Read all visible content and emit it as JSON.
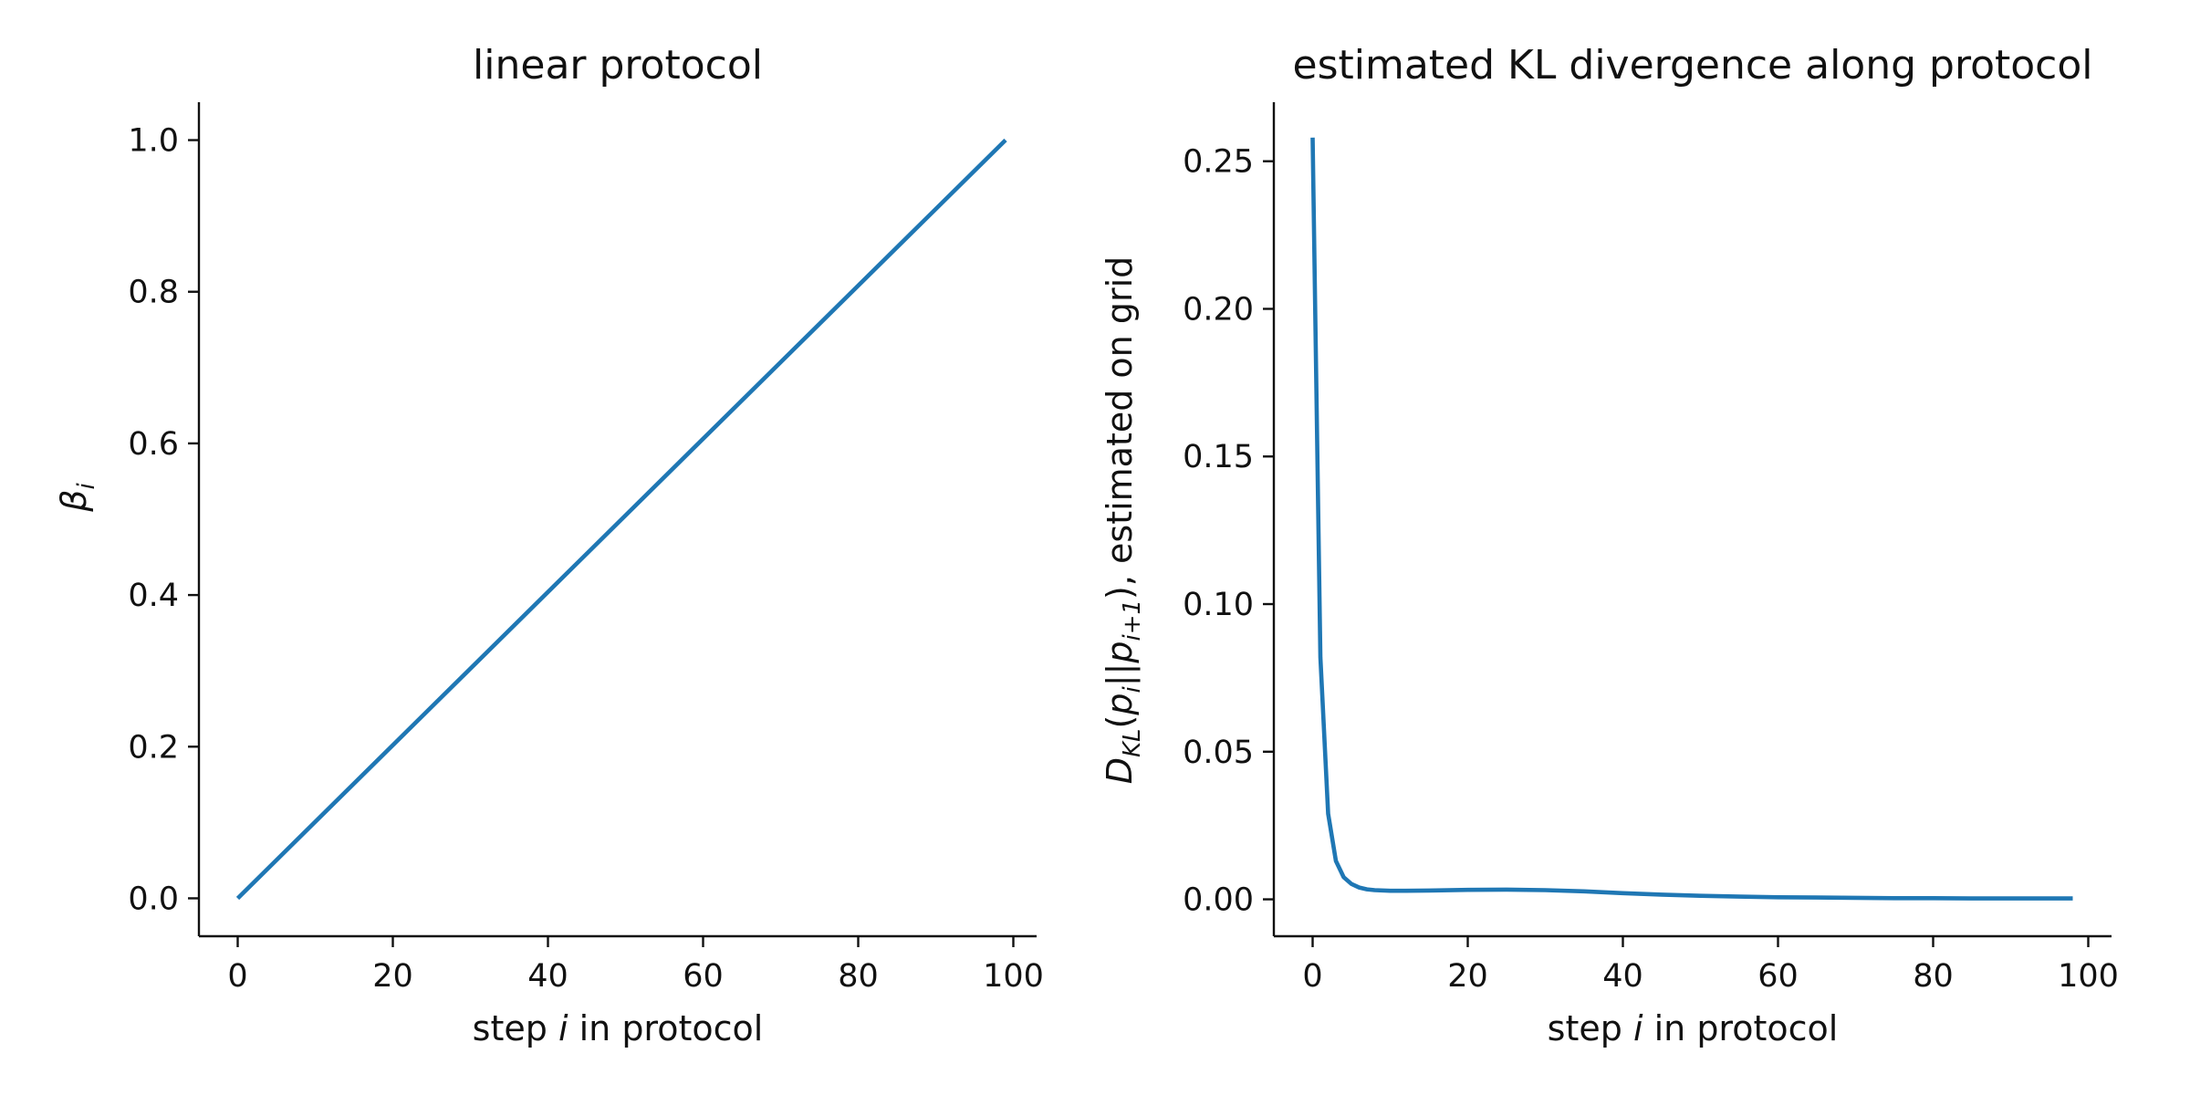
{
  "chart_data": [
    {
      "type": "line",
      "title": "linear protocol",
      "xlabel": {
        "pre": "step ",
        "var": "i",
        "post": " in protocol"
      },
      "ylabel": {
        "base": "β",
        "sub": "i"
      },
      "xlim": [
        -5,
        103
      ],
      "ylim": [
        -0.05,
        1.05
      ],
      "xticks": [
        0,
        20,
        40,
        60,
        80,
        100
      ],
      "xtick_labels": [
        "0",
        "20",
        "40",
        "60",
        "80",
        "100"
      ],
      "yticks": [
        0,
        0.2,
        0.4,
        0.6,
        0.8,
        1.0
      ],
      "ytick_labels": [
        "0.0",
        "0.2",
        "0.4",
        "0.6",
        "0.8",
        "1.0"
      ],
      "grid": false,
      "color": "#1f77b4",
      "series": [
        {
          "x": [
            0,
            99
          ],
          "y": [
            0.0,
            1.0
          ]
        }
      ]
    },
    {
      "type": "line",
      "title": "estimated KL divergence along protocol",
      "xlabel": {
        "pre": "step ",
        "var": "i",
        "post": " in protocol"
      },
      "ylabel": {
        "parts": [
          {
            "t": "D",
            "s": "i"
          },
          {
            "t": "KL",
            "s": "sub"
          },
          {
            "t": "(",
            "s": "n"
          },
          {
            "t": "p",
            "s": "i"
          },
          {
            "t": "i",
            "s": "sub"
          },
          {
            "t": "||",
            "s": "n"
          },
          {
            "t": "p",
            "s": "i"
          },
          {
            "t": "i+1",
            "s": "sub"
          },
          {
            "t": "), estimated on grid",
            "s": "n"
          }
        ]
      },
      "xlim": [
        -5,
        103
      ],
      "ylim": [
        -0.0125,
        0.27
      ],
      "xticks": [
        0,
        20,
        40,
        60,
        80,
        100
      ],
      "xtick_labels": [
        "0",
        "20",
        "40",
        "60",
        "80",
        "100"
      ],
      "yticks": [
        0,
        0.05,
        0.1,
        0.15,
        0.2,
        0.25
      ],
      "ytick_labels": [
        "0.00",
        "0.05",
        "0.10",
        "0.15",
        "0.20",
        "0.25"
      ],
      "grid": false,
      "color": "#1f77b4",
      "series": [
        {
          "x": [
            0,
            1,
            2,
            3,
            4,
            5,
            6,
            7,
            8,
            10,
            12,
            15,
            20,
            25,
            30,
            35,
            40,
            45,
            50,
            55,
            60,
            65,
            70,
            75,
            80,
            85,
            90,
            95,
            98
          ],
          "y": [
            0.258,
            0.082,
            0.029,
            0.013,
            0.0075,
            0.0052,
            0.004,
            0.0034,
            0.0031,
            0.0029,
            0.0029,
            0.003,
            0.0032,
            0.0033,
            0.0031,
            0.0027,
            0.0021,
            0.0016,
            0.0012,
            0.0009,
            0.0007,
            0.0006,
            0.0005,
            0.0004,
            0.0004,
            0.0003,
            0.0003,
            0.0003,
            0.0003
          ]
        }
      ]
    }
  ]
}
